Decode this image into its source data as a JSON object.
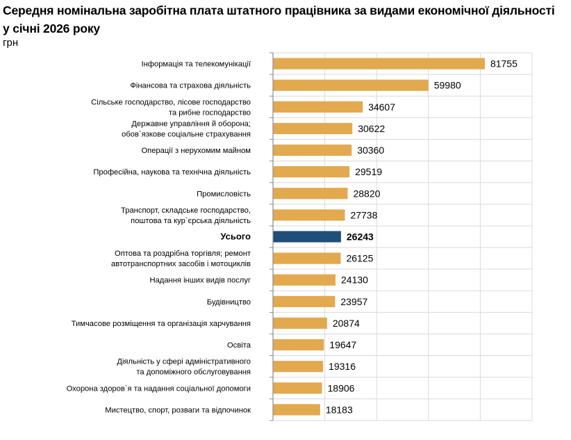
{
  "header": {
    "title_line1": "Середня номінальна заробітна плата штатного працівника за видами економічної діяльності",
    "title_line2": "у січні 2026 року",
    "unit": "грн"
  },
  "colors": {
    "bar": "#E2A94F",
    "highlight_bar": "#1F4E79",
    "grid": "#D9D9D9",
    "axis": "#8C8C8C"
  },
  "chart_data": {
    "type": "bar",
    "orientation": "horizontal",
    "title": "Середня номінальна заробітна плата штатного працівника за видами економічної діяльності у січні 2026 року",
    "ylabel": "",
    "xlabel": "",
    "unit": "грн",
    "xlim": [
      0,
      100000
    ],
    "grid_step": 20000,
    "grid": true,
    "highlight_category": "Усього",
    "categories": [
      [
        "Інформація та телекомунікації"
      ],
      [
        "Фінансова та страхова діяльність"
      ],
      [
        "Сільське господарство, лісове господарство",
        "та рибне господарство"
      ],
      [
        "Державне управління й оборона;",
        "обов`язкове соціальне страхування"
      ],
      [
        "Операції з нерухомим майном"
      ],
      [
        "Професійна, наукова та технічна діяльність"
      ],
      [
        "Промисловість"
      ],
      [
        "Транспорт, складське господарство,",
        "поштова та кур`єрська діяльність"
      ],
      [
        "Усього"
      ],
      [
        "Оптова та роздрібна торгівля; ремонт",
        "автотранспортних засобів і мотоциклів"
      ],
      [
        "Надання інших видів послуг"
      ],
      [
        "Будівництво"
      ],
      [
        "Тимчасове розміщення та організація харчування"
      ],
      [
        "Освіта"
      ],
      [
        "Діяльність у сфері адміністративного",
        "та допоміжного обслуговування"
      ],
      [
        "Охорона здоров`я та надання соціальної допомоги"
      ],
      [
        "Мистецтво, спорт, розваги та відпочинок"
      ]
    ],
    "values": [
      81755,
      59980,
      34607,
      30622,
      30360,
      29519,
      28820,
      27738,
      26243,
      26125,
      24130,
      23957,
      20874,
      19647,
      19316,
      18906,
      18183
    ]
  }
}
